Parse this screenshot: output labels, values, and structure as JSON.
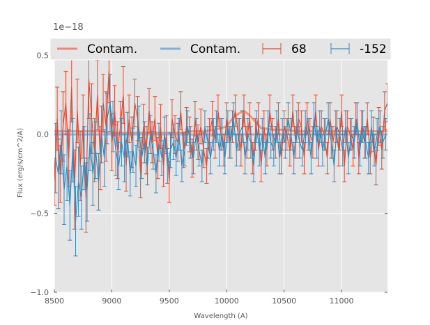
{
  "chart_data": {
    "type": "line",
    "xlabel": "Wavelength (A)",
    "ylabel": "Flux (erg/s/cm^2/A)",
    "y_offset_text": "1e−18",
    "xlim": [
      8500,
      11400
    ],
    "ylim": [
      -1.0,
      0.6
    ],
    "y_scale_factor": 1e-18,
    "x_ticks": [
      8500,
      9000,
      9500,
      10000,
      10500,
      11000
    ],
    "x_tick_labels": [
      "8500",
      "9000",
      "9500",
      "10000",
      "10500",
      "11000"
    ],
    "y_ticks": [
      -1.0,
      -0.5,
      0.0,
      0.5
    ],
    "y_tick_labels": [
      "−1.0",
      "−0.5",
      "0.0",
      "0.5"
    ],
    "grid": true,
    "legend_position": "top",
    "legend_entries": [
      {
        "label": "Contam.",
        "kind": "line",
        "color": "#E8897A"
      },
      {
        "label": "Contam.",
        "kind": "line",
        "color": "#7FB0D8"
      },
      {
        "label": "68",
        "kind": "errorbar",
        "color": "#E24A33"
      },
      {
        "label": "-152",
        "kind": "errorbar",
        "color": "#348ABD"
      }
    ],
    "series": [
      {
        "name": "68",
        "kind": "errorbar",
        "color": "#E24A33",
        "x": [
          8500,
          8525,
          8550,
          8575,
          8600,
          8625,
          8650,
          8675,
          8700,
          8725,
          8750,
          8775,
          8800,
          8825,
          8850,
          8875,
          8900,
          8925,
          8950,
          8975,
          9000,
          9025,
          9050,
          9075,
          9100,
          9125,
          9150,
          9175,
          9200,
          9225,
          9250,
          9275,
          9300,
          9325,
          9350,
          9375,
          9400,
          9425,
          9450,
          9475,
          9500,
          9525,
          9550,
          9575,
          9600,
          9625,
          9650,
          9675,
          9700,
          9725,
          9750,
          9775,
          9800,
          9825,
          9850,
          9875,
          9900,
          9925,
          9950,
          9975,
          10000,
          10025,
          10050,
          10075,
          10100,
          10125,
          10150,
          10175,
          10200,
          10225,
          10250,
          10275,
          10300,
          10325,
          10350,
          10375,
          10400,
          10425,
          10450,
          10475,
          10500,
          10525,
          10550,
          10575,
          10600,
          10625,
          10650,
          10675,
          10700,
          10725,
          10750,
          10775,
          10800,
          10825,
          10850,
          10875,
          10900,
          10925,
          10950,
          10975,
          11000,
          11025,
          11050,
          11075,
          11100,
          11125,
          11150,
          11175,
          11200,
          11225,
          11250,
          11275,
          11300,
          11325,
          11350,
          11375,
          11400
        ],
        "y": [
          -0.3,
          0.1,
          -0.25,
          0.05,
          0.2,
          -0.15,
          0.3,
          -0.35,
          0.15,
          -0.2,
          0.05,
          -0.4,
          0.35,
          0.1,
          -0.1,
          0.25,
          -0.15,
          0.2,
          0.05,
          0.4,
          -0.05,
          0.15,
          -0.1,
          0.05,
          0.25,
          -0.2,
          0.1,
          -0.05,
          0.2,
          0.1,
          -0.25,
          0.05,
          -0.1,
          0.15,
          -0.05,
          0.1,
          -0.15,
          0.05,
          -0.2,
          0.0,
          -0.3,
          0.1,
          0.0,
          -0.05,
          0.15,
          -0.1,
          0.05,
          0.0,
          -0.15,
          0.1,
          -0.05,
          0.05,
          -0.1,
          -0.2,
          0.0,
          0.1,
          -0.05,
          0.15,
          0.0,
          -0.1,
          0.1,
          -0.05,
          0.05,
          0.15,
          0.0,
          -0.1,
          0.15,
          -0.05,
          0.1,
          -0.15,
          0.0,
          0.1,
          -0.2,
          0.05,
          -0.1,
          0.15,
          0.0,
          -0.05,
          0.1,
          -0.15,
          0.05,
          0.0,
          -0.1,
          0.15,
          -0.05,
          0.1,
          0.05,
          -0.15,
          0.1,
          0.0,
          -0.05,
          0.15,
          -0.1,
          0.05,
          0.0,
          -0.15,
          0.1,
          -0.05,
          0.05,
          -0.1,
          0.15,
          -0.2,
          0.05,
          0.0,
          -0.1,
          0.1,
          -0.15,
          0.05,
          -0.05,
          0.1,
          -0.15,
          0.0,
          -0.2,
          0.05,
          -0.1,
          0.15,
          0.2
        ],
        "err": [
          0.15,
          0.2,
          0.18,
          0.22,
          0.2,
          0.18,
          0.22,
          0.25,
          0.2,
          0.22,
          0.2,
          0.22,
          0.25,
          0.22,
          0.2,
          0.22,
          0.2,
          0.18,
          0.22,
          0.2,
          0.18,
          0.16,
          0.18,
          0.16,
          0.18,
          0.16,
          0.15,
          0.16,
          0.15,
          0.14,
          0.15,
          0.14,
          0.15,
          0.14,
          0.13,
          0.14,
          0.13,
          0.14,
          0.13,
          0.12,
          0.13,
          0.12,
          0.12,
          0.12,
          0.12,
          0.11,
          0.12,
          0.11,
          0.12,
          0.11,
          0.11,
          0.11,
          0.11,
          0.11,
          0.1,
          0.11,
          0.1,
          0.1,
          0.1,
          0.1,
          0.1,
          0.1,
          0.1,
          0.1,
          0.1,
          0.1,
          0.1,
          0.1,
          0.1,
          0.1,
          0.1,
          0.1,
          0.1,
          0.1,
          0.1,
          0.1,
          0.1,
          0.1,
          0.1,
          0.1,
          0.1,
          0.1,
          0.1,
          0.1,
          0.1,
          0.1,
          0.1,
          0.1,
          0.1,
          0.1,
          0.1,
          0.1,
          0.1,
          0.1,
          0.1,
          0.1,
          0.1,
          0.1,
          0.1,
          0.1,
          0.1,
          0.1,
          0.1,
          0.1,
          0.1,
          0.1,
          0.1,
          0.1,
          0.1,
          0.1,
          0.1,
          0.11,
          0.12,
          0.12,
          0.12,
          0.12,
          0.12
        ]
      },
      {
        "name": "-152",
        "kind": "errorbar",
        "color": "#348ABD",
        "x": [
          8510,
          8535,
          8560,
          8585,
          8610,
          8635,
          8660,
          8685,
          8710,
          8735,
          8760,
          8785,
          8810,
          8835,
          8860,
          8885,
          8910,
          8935,
          8960,
          8985,
          9010,
          9035,
          9060,
          9085,
          9110,
          9135,
          9160,
          9185,
          9210,
          9235,
          9260,
          9285,
          9310,
          9335,
          9360,
          9385,
          9410,
          9435,
          9460,
          9485,
          9510,
          9535,
          9560,
          9585,
          9610,
          9635,
          9660,
          9685,
          9710,
          9735,
          9760,
          9785,
          9810,
          9835,
          9860,
          9885,
          9910,
          9935,
          9960,
          9985,
          10010,
          10035,
          10060,
          10085,
          10110,
          10135,
          10160,
          10185,
          10210,
          10235,
          10260,
          10285,
          10310,
          10335,
          10360,
          10385,
          10410,
          10435,
          10460,
          10485,
          10510,
          10535,
          10560,
          10585,
          10610,
          10635,
          10660,
          10685,
          10710,
          10735,
          10760,
          10785,
          10810,
          10835,
          10860,
          10885,
          10910,
          10935,
          10960,
          10985,
          11010,
          11035,
          11060,
          11085,
          11110,
          11135,
          11160,
          11185,
          11210,
          11235,
          11260,
          11285,
          11310,
          11335,
          11360,
          11385
        ],
        "y": [
          -0.15,
          -0.25,
          -0.05,
          -0.35,
          -0.2,
          -0.45,
          -0.1,
          -0.55,
          -0.3,
          -0.4,
          -0.15,
          -0.35,
          -0.05,
          -0.25,
          -0.1,
          -0.3,
          0.0,
          -0.15,
          0.1,
          0.2,
          0.05,
          -0.1,
          -0.2,
          -0.05,
          -0.15,
          0.0,
          -0.25,
          -0.1,
          -0.2,
          0.05,
          -0.15,
          -0.05,
          -0.2,
          0.0,
          -0.1,
          -0.25,
          -0.05,
          -0.15,
          0.0,
          -0.2,
          -0.1,
          -0.05,
          -0.15,
          0.0,
          -0.2,
          -0.1,
          0.05,
          -0.05,
          -0.15,
          0.0,
          -0.1,
          -0.2,
          0.05,
          -0.05,
          -0.15,
          0.0,
          0.05,
          -0.1,
          0.0,
          -0.15,
          0.05,
          -0.05,
          0.1,
          -0.1,
          0.0,
          0.05,
          -0.15,
          0.0,
          -0.05,
          -0.2,
          0.05,
          -0.1,
          0.0,
          -0.15,
          0.05,
          -0.05,
          -0.1,
          0.05,
          -0.15,
          0.0,
          -0.05,
          0.1,
          0.0,
          -0.15,
          0.05,
          -0.05,
          -0.1,
          0.05,
          0.0,
          -0.15,
          0.1,
          -0.05,
          0.05,
          -0.1,
          0.0,
          0.1,
          -0.05,
          -0.2,
          0.05,
          0.0,
          -0.1,
          0.05,
          -0.15,
          0.0,
          -0.05,
          0.1,
          -0.1,
          0.05,
          -0.05,
          -0.15,
          0.05,
          -0.1,
          0.0,
          0.05,
          -0.05,
          0.0
        ],
        "err": [
          0.22,
          0.22,
          0.2,
          0.22,
          0.22,
          0.22,
          0.2,
          0.22,
          0.22,
          0.2,
          0.2,
          0.2,
          0.18,
          0.2,
          0.18,
          0.18,
          0.18,
          0.18,
          0.16,
          0.18,
          0.16,
          0.16,
          0.15,
          0.15,
          0.15,
          0.14,
          0.14,
          0.14,
          0.13,
          0.13,
          0.13,
          0.13,
          0.12,
          0.12,
          0.12,
          0.12,
          0.12,
          0.11,
          0.11,
          0.11,
          0.11,
          0.11,
          0.11,
          0.1,
          0.1,
          0.1,
          0.1,
          0.1,
          0.1,
          0.1,
          0.1,
          0.1,
          0.1,
          0.1,
          0.1,
          0.1,
          0.1,
          0.1,
          0.1,
          0.1,
          0.1,
          0.1,
          0.1,
          0.1,
          0.1,
          0.1,
          0.1,
          0.1,
          0.1,
          0.1,
          0.1,
          0.1,
          0.1,
          0.1,
          0.1,
          0.1,
          0.1,
          0.1,
          0.1,
          0.1,
          0.1,
          0.1,
          0.1,
          0.1,
          0.1,
          0.1,
          0.1,
          0.1,
          0.1,
          0.1,
          0.1,
          0.1,
          0.1,
          0.1,
          0.1,
          0.1,
          0.1,
          0.1,
          0.1,
          0.1,
          0.1,
          0.1,
          0.1,
          0.1,
          0.1,
          0.1,
          0.1,
          0.1,
          0.1,
          0.1,
          0.1,
          0.1,
          0.1,
          0.1,
          0.1,
          0.1
        ]
      },
      {
        "name": "Contam.",
        "kind": "line",
        "color": "#E8897A",
        "x": [
          8500,
          8600,
          8700,
          8800,
          8900,
          9000,
          9100,
          9200,
          9300,
          9400,
          9500,
          9600,
          9700,
          9800,
          9900,
          10000,
          10050,
          10100,
          10150,
          10200,
          10250,
          10300,
          10400,
          10500,
          10600,
          10700,
          10800,
          10900,
          11000,
          11100,
          11200,
          11300,
          11400
        ],
        "y": [
          0.02,
          0.02,
          0.02,
          0.02,
          0.02,
          0.01,
          0.01,
          0.01,
          0.01,
          0.01,
          0.01,
          0.01,
          0.02,
          0.02,
          0.03,
          0.05,
          0.1,
          0.13,
          0.15,
          0.12,
          0.08,
          0.04,
          0.03,
          0.03,
          0.02,
          0.02,
          0.02,
          0.02,
          0.02,
          0.02,
          0.02,
          0.02,
          0.02
        ]
      },
      {
        "name": "Contam.",
        "kind": "line",
        "color": "#7FB0D8",
        "x": [
          8500,
          8700,
          8900,
          9100,
          9300,
          9500,
          9700,
          9900,
          10100,
          10300,
          10500,
          10700,
          10900,
          11100,
          11300,
          11400
        ],
        "y": [
          0.0,
          0.0,
          0.0,
          0.0,
          0.0,
          0.0,
          0.0,
          0.0,
          0.0,
          0.0,
          0.0,
          0.0,
          0.0,
          0.0,
          0.0,
          0.0
        ]
      }
    ]
  }
}
